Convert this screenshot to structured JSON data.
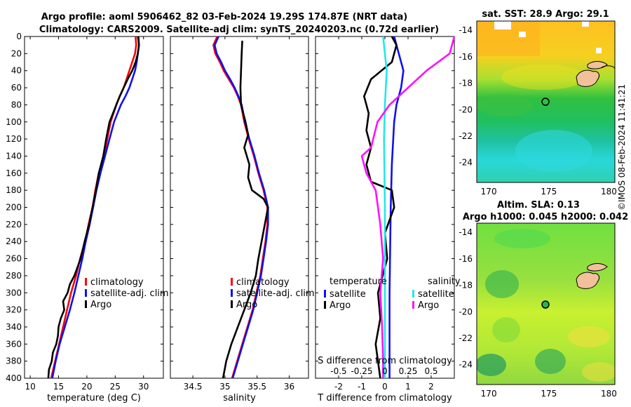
{
  "titles": {
    "line1": "Argo profile: aoml 5906462_82 03-Feb-2024 19.29S 174.87E (NRT data)",
    "line2": "Climatology: CARS2009. Satellite-adj clim: synTS_20240203.nc (0.72d earlier)"
  },
  "credit": "©IMOS 08-Feb-2024 11:41:21",
  "colors": {
    "climatology": "#ff0000",
    "satellite": "#1010ee",
    "argo": "#000000",
    "sal_satellite": "#22e8e8",
    "sal_argo": "#ff10ff",
    "land": "#f2c09a"
  },
  "chart_data": [
    {
      "type": "line",
      "id": "temperature",
      "xlabel": "temperature (deg C)",
      "ylim": [
        400,
        0
      ],
      "xlim": [
        9,
        33.5
      ],
      "xticks": [
        10,
        15,
        20,
        25,
        30
      ],
      "yticks": [
        0,
        20,
        40,
        60,
        80,
        100,
        120,
        140,
        160,
        180,
        200,
        220,
        240,
        260,
        280,
        300,
        320,
        340,
        360,
        380,
        400
      ],
      "legend": [
        "climatology",
        "satellite-adj. clim",
        "Argo"
      ],
      "series": [
        {
          "name": "climatology",
          "color": "#ff0000",
          "points": [
            [
              28.6,
              0
            ],
            [
              28.7,
              10
            ],
            [
              28.5,
              20
            ],
            [
              28.0,
              30
            ],
            [
              27.5,
              40
            ],
            [
              27.0,
              50
            ],
            [
              26.5,
              60
            ],
            [
              25.8,
              70
            ],
            [
              25.2,
              80
            ],
            [
              24.7,
              90
            ],
            [
              24.2,
              100
            ],
            [
              23.6,
              120
            ],
            [
              23.0,
              140
            ],
            [
              22.1,
              160
            ],
            [
              21.5,
              180
            ],
            [
              21.0,
              200
            ],
            [
              20.3,
              220
            ],
            [
              19.7,
              240
            ],
            [
              18.8,
              260
            ],
            [
              18.1,
              280
            ],
            [
              17.2,
              300
            ],
            [
              16.5,
              320
            ],
            [
              15.8,
              340
            ],
            [
              15.1,
              360
            ],
            [
              14.4,
              380
            ],
            [
              13.7,
              400
            ]
          ]
        },
        {
          "name": "satellite-adj. clim",
          "color": "#1010ee",
          "points": [
            [
              29.0,
              0
            ],
            [
              29.2,
              10
            ],
            [
              29.0,
              20
            ],
            [
              28.8,
              30
            ],
            [
              28.5,
              40
            ],
            [
              28.0,
              50
            ],
            [
              27.5,
              60
            ],
            [
              26.8,
              70
            ],
            [
              26.0,
              80
            ],
            [
              25.4,
              90
            ],
            [
              24.8,
              100
            ],
            [
              24.0,
              120
            ],
            [
              23.2,
              140
            ],
            [
              22.4,
              160
            ],
            [
              21.7,
              180
            ],
            [
              21.1,
              200
            ],
            [
              20.5,
              220
            ],
            [
              19.8,
              240
            ],
            [
              19.2,
              260
            ],
            [
              18.5,
              280
            ],
            [
              17.8,
              300
            ],
            [
              17.0,
              320
            ],
            [
              16.1,
              340
            ],
            [
              15.2,
              360
            ],
            [
              14.5,
              380
            ],
            [
              13.9,
              400
            ]
          ]
        },
        {
          "name": "Argo",
          "color": "#000000",
          "points": [
            [
              29.1,
              0
            ],
            [
              29.2,
              10
            ],
            [
              29.0,
              20
            ],
            [
              28.6,
              30
            ],
            [
              28.0,
              40
            ],
            [
              27.2,
              50
            ],
            [
              26.5,
              60
            ],
            [
              25.8,
              70
            ],
            [
              25.2,
              80
            ],
            [
              24.6,
              90
            ],
            [
              24.0,
              100
            ],
            [
              23.4,
              120
            ],
            [
              22.9,
              140
            ],
            [
              22.1,
              160
            ],
            [
              21.6,
              180
            ],
            [
              21.0,
              200
            ],
            [
              20.4,
              220
            ],
            [
              19.6,
              240
            ],
            [
              18.9,
              260
            ],
            [
              17.8,
              280
            ],
            [
              17.0,
              290
            ],
            [
              16.6,
              300
            ],
            [
              15.8,
              310
            ],
            [
              16.0,
              320
            ],
            [
              15.4,
              330
            ],
            [
              15.0,
              340
            ],
            [
              14.9,
              350
            ],
            [
              14.6,
              360
            ],
            [
              14.0,
              370
            ],
            [
              13.8,
              380
            ],
            [
              13.3,
              390
            ],
            [
              13.2,
              400
            ]
          ]
        }
      ]
    },
    {
      "type": "line",
      "id": "salinity",
      "xlabel": "salinity",
      "ylim": [
        400,
        0
      ],
      "xlim": [
        34.15,
        36.3
      ],
      "xticks": [
        34.5,
        35,
        35.5,
        36
      ],
      "legend": [
        "climatology",
        "satellite-adj. clim",
        "Argo"
      ],
      "series": [
        {
          "name": "climatology",
          "color": "#ff0000",
          "points": [
            [
              34.88,
              0
            ],
            [
              34.82,
              10
            ],
            [
              34.85,
              20
            ],
            [
              34.92,
              30
            ],
            [
              34.98,
              40
            ],
            [
              35.06,
              50
            ],
            [
              35.14,
              60
            ],
            [
              35.2,
              70
            ],
            [
              35.25,
              80
            ],
            [
              35.3,
              100
            ],
            [
              35.37,
              120
            ],
            [
              35.45,
              140
            ],
            [
              35.52,
              160
            ],
            [
              35.6,
              180
            ],
            [
              35.66,
              200
            ],
            [
              35.66,
              220
            ],
            [
              35.63,
              240
            ],
            [
              35.59,
              260
            ],
            [
              35.55,
              280
            ],
            [
              35.49,
              300
            ],
            [
              35.43,
              320
            ],
            [
              35.35,
              340
            ],
            [
              35.27,
              360
            ],
            [
              35.19,
              380
            ],
            [
              35.11,
              400
            ]
          ]
        },
        {
          "name": "satellite-adj. clim",
          "color": "#1010ee",
          "points": [
            [
              34.9,
              0
            ],
            [
              34.84,
              10
            ],
            [
              34.87,
              20
            ],
            [
              34.94,
              30
            ],
            [
              35.0,
              40
            ],
            [
              35.08,
              50
            ],
            [
              35.15,
              60
            ],
            [
              35.21,
              70
            ],
            [
              35.26,
              80
            ],
            [
              35.31,
              100
            ],
            [
              35.38,
              120
            ],
            [
              35.46,
              140
            ],
            [
              35.53,
              160
            ],
            [
              35.61,
              180
            ],
            [
              35.67,
              200
            ],
            [
              35.67,
              220
            ],
            [
              35.64,
              240
            ],
            [
              35.6,
              260
            ],
            [
              35.56,
              280
            ],
            [
              35.5,
              300
            ],
            [
              35.44,
              320
            ],
            [
              35.36,
              340
            ],
            [
              35.28,
              360
            ],
            [
              35.2,
              380
            ],
            [
              35.12,
              400
            ]
          ]
        },
        {
          "name": "Argo",
          "color": "#000000",
          "points": [
            [
              35.27,
              5
            ],
            [
              35.26,
              20
            ],
            [
              35.25,
              40
            ],
            [
              35.24,
              60
            ],
            [
              35.25,
              80
            ],
            [
              35.32,
              100
            ],
            [
              35.36,
              115
            ],
            [
              35.3,
              130
            ],
            [
              35.38,
              150
            ],
            [
              35.36,
              165
            ],
            [
              35.42,
              180
            ],
            [
              35.6,
              190
            ],
            [
              35.67,
              200
            ],
            [
              35.62,
              220
            ],
            [
              35.57,
              240
            ],
            [
              35.52,
              260
            ],
            [
              35.48,
              280
            ],
            [
              35.4,
              300
            ],
            [
              35.3,
              320
            ],
            [
              35.2,
              340
            ],
            [
              35.1,
              360
            ],
            [
              35.02,
              380
            ],
            [
              34.97,
              400
            ]
          ]
        }
      ]
    },
    {
      "type": "line",
      "id": "difference",
      "xlabel": "T difference from climatology",
      "xlabel_top": "S difference from climatology",
      "ylim": [
        400,
        0
      ],
      "xlim": [
        -3,
        3
      ],
      "xticks": [
        -2,
        -1,
        0,
        1,
        2
      ],
      "sticks": [
        -0.5,
        -0.25,
        0,
        0.25,
        0.5
      ],
      "sxlim": [
        -0.75,
        0.75
      ],
      "legend_titles": [
        "temperature",
        "salinity"
      ],
      "legend": [
        [
          "satellite",
          "Argo"
        ],
        [
          "satellite",
          "Argo"
        ]
      ],
      "series": [
        {
          "name": "temperature satellite",
          "color": "#1010ee",
          "axis": "T",
          "points": [
            [
              0.4,
              0
            ],
            [
              0.6,
              20
            ],
            [
              0.8,
              40
            ],
            [
              0.7,
              60
            ],
            [
              0.5,
              80
            ],
            [
              0.4,
              100
            ],
            [
              0.3,
              150
            ],
            [
              0.25,
              200
            ],
            [
              0.2,
              300
            ],
            [
              0.2,
              400
            ]
          ]
        },
        {
          "name": "temperature Argo",
          "color": "#000000",
          "axis": "T",
          "points": [
            [
              0.3,
              0
            ],
            [
              0.5,
              10
            ],
            [
              0.3,
              30
            ],
            [
              -0.6,
              50
            ],
            [
              -0.9,
              70
            ],
            [
              -0.7,
              90
            ],
            [
              -0.8,
              110
            ],
            [
              -0.6,
              130
            ],
            [
              -0.8,
              150
            ],
            [
              -0.6,
              170
            ],
            [
              0.3,
              180
            ],
            [
              0.4,
              200
            ],
            [
              0.0,
              230
            ],
            [
              0.1,
              260
            ],
            [
              -0.3,
              300
            ],
            [
              -0.2,
              330
            ],
            [
              -0.4,
              360
            ],
            [
              -0.2,
              400
            ]
          ]
        },
        {
          "name": "salinity satellite",
          "color": "#22e8e8",
          "axis": "S",
          "points": [
            [
              -0.02,
              0
            ],
            [
              0.0,
              20
            ],
            [
              0.02,
              40
            ],
            [
              0.0,
              80
            ],
            [
              -0.01,
              120
            ],
            [
              0.0,
              200
            ],
            [
              0.0,
              300
            ],
            [
              0.0,
              400
            ]
          ]
        },
        {
          "name": "salinity Argo",
          "color": "#ff10ff",
          "axis": "S",
          "points": [
            [
              0.75,
              0
            ],
            [
              0.7,
              20
            ],
            [
              0.45,
              40
            ],
            [
              0.25,
              60
            ],
            [
              0.05,
              80
            ],
            [
              -0.08,
              100
            ],
            [
              -0.15,
              130
            ],
            [
              -0.25,
              140
            ],
            [
              -0.2,
              160
            ],
            [
              -0.1,
              180
            ],
            [
              -0.05,
              220
            ],
            [
              -0.02,
              260
            ],
            [
              -0.05,
              300
            ],
            [
              -0.03,
              340
            ],
            [
              -0.02,
              380
            ],
            [
              -0.02,
              400
            ]
          ]
        }
      ]
    },
    {
      "type": "heatmap",
      "id": "sst_map",
      "title": "sat. SST: 28.9 Argo: 29.1",
      "xticks": [
        170,
        175,
        180
      ],
      "yticks": [
        -14,
        -16,
        -18,
        -20,
        -22,
        -24
      ],
      "xlim": [
        169,
        180.5
      ],
      "ylim": [
        -25.5,
        -13.3
      ],
      "marker": [
        174.87,
        -19.29
      ]
    },
    {
      "type": "heatmap",
      "id": "sla_map",
      "title": "Altim. SLA: 0.13",
      "subtitle": "Argo h1000: 0.045 h2000: 0.042",
      "xticks": [
        170,
        175,
        180
      ],
      "yticks": [
        -14,
        -16,
        -18,
        -20,
        -22,
        -24
      ],
      "xlim": [
        169,
        180.5
      ],
      "ylim": [
        -25.5,
        -13.3
      ],
      "marker": [
        174.87,
        -19.29
      ]
    }
  ]
}
